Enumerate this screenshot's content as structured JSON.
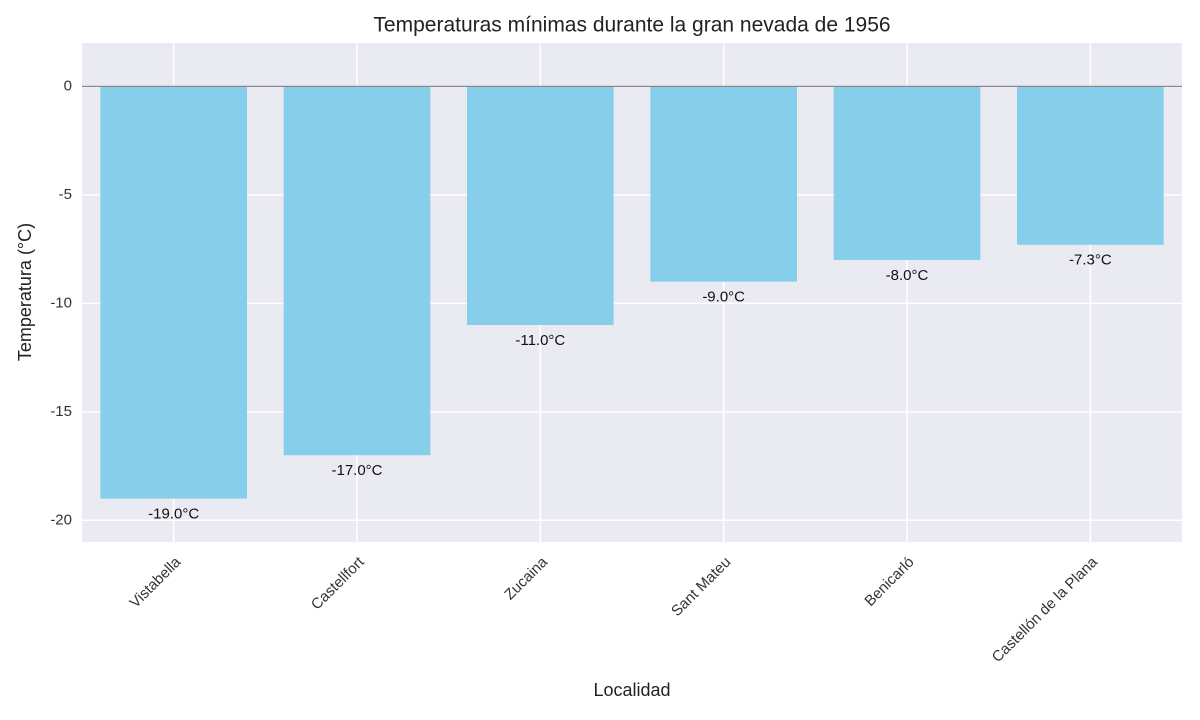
{
  "chart_data": {
    "type": "bar",
    "title": "Temperaturas mínimas durante la gran nevada de 1956",
    "x_label": "Localidad",
    "y_label": "Temperatura (°C)",
    "categories": [
      "Vistabella",
      "Castellfort",
      "Zucaina",
      "Sant Mateu",
      "Benicarló",
      "Castellón de la Plana"
    ],
    "values": [
      -19.0,
      -17.0,
      -11.0,
      -9.0,
      -8.0,
      -7.3
    ],
    "value_labels": [
      "-19.0°C",
      "-17.0°C",
      "-11.0°C",
      "-9.0°C",
      "-8.0°C",
      "-7.3°C"
    ],
    "color": "#87ceeb",
    "ylim": [
      -21,
      2
    ],
    "yticks": [
      0,
      -5,
      -10,
      -15,
      -20
    ],
    "grid": true
  }
}
